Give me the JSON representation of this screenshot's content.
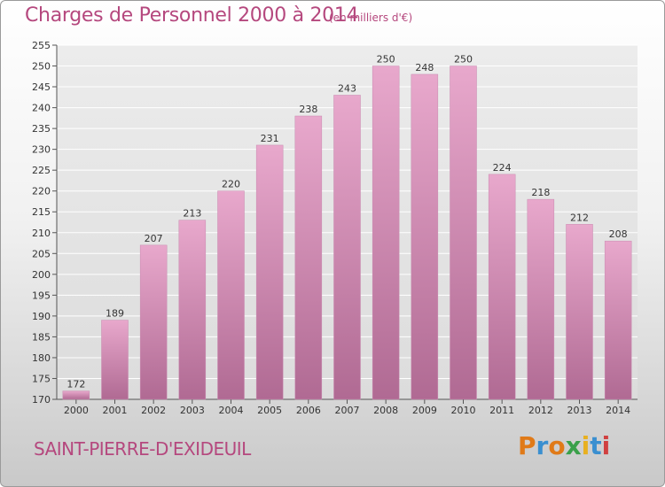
{
  "header": {
    "title": "Charges de Personnel 2000 à 2014",
    "subtitle": "(en milliers d'€)"
  },
  "footer": {
    "commune": "SAINT-PIERRE-D'EXIDEUIL",
    "brand": "Proxiti",
    "brand_letters": [
      {
        "ch": "P",
        "color": "#e07a18"
      },
      {
        "ch": "r",
        "color": "#3a8fd0"
      },
      {
        "ch": "o",
        "color": "#e07a18"
      },
      {
        "ch": "x",
        "color": "#3aa04a"
      },
      {
        "ch": "i",
        "color": "#e8b020"
      },
      {
        "ch": "t",
        "color": "#3a8fd0"
      },
      {
        "ch": "i",
        "color": "#d04040"
      }
    ]
  },
  "colors": {
    "accent": "#b5487e",
    "bar_top": "#e8a8cc",
    "bar_bottom": "#b06a93"
  },
  "chart_data": {
    "type": "bar",
    "title": "Charges de Personnel 2000 à 2014",
    "subtitle": "(en milliers d'€)",
    "categories": [
      "2000",
      "2001",
      "2002",
      "2003",
      "2004",
      "2005",
      "2006",
      "2007",
      "2008",
      "2009",
      "2010",
      "2011",
      "2012",
      "2013",
      "2014"
    ],
    "values": [
      172,
      189,
      207,
      213,
      220,
      231,
      238,
      243,
      250,
      248,
      250,
      224,
      218,
      212,
      208
    ],
    "ylim": [
      170,
      255
    ],
    "yticks": [
      170,
      175,
      180,
      185,
      190,
      195,
      200,
      205,
      210,
      215,
      220,
      225,
      230,
      235,
      240,
      245,
      250,
      255
    ],
    "grid": true,
    "data_labels": true
  }
}
